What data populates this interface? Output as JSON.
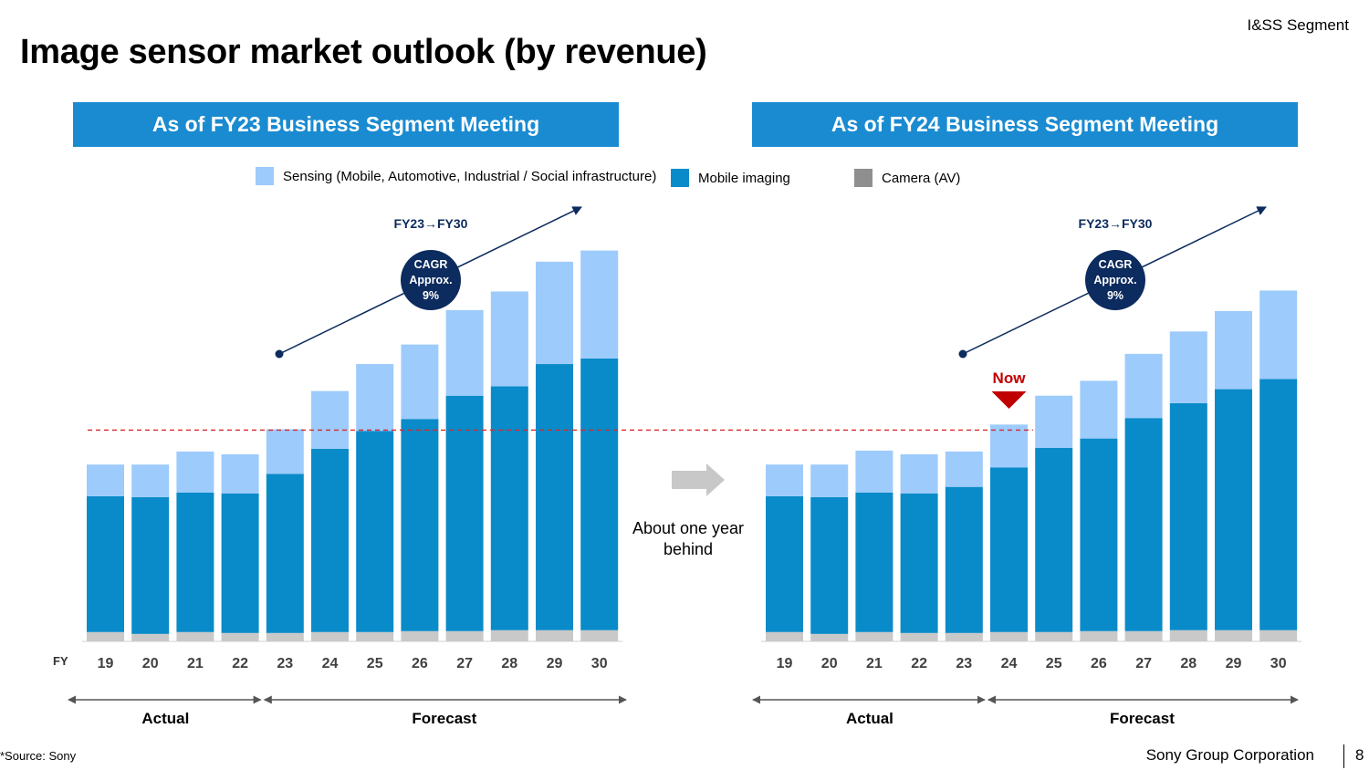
{
  "header": {
    "segment": "I&SS Segment",
    "title": "Image sensor market outlook (by revenue)"
  },
  "legend": {
    "sensing": "Sensing (Mobile, Automotive, Industrial / Social infrastructure)",
    "mobile": "Mobile imaging",
    "camera": "Camera (AV)"
  },
  "colors": {
    "sensing": "#9dcbfb",
    "mobile": "#0a8bc9",
    "camera": "#c9c9c9",
    "header_bg": "#1a8bd1",
    "navy": "#0c2b5e",
    "red": "#c00000"
  },
  "annotations": {
    "between_panels": "About one year behind",
    "now": "Now",
    "fy_axis_label": "FY",
    "actual": "Actual",
    "forecast": "Forecast"
  },
  "footer": {
    "source": "*Source: Sony",
    "company": "Sony Group Corporation",
    "page": "8"
  },
  "chart_data": [
    {
      "type": "bar",
      "stacked": true,
      "title": "As of FY23 Business Segment Meeting",
      "categories": [
        "19",
        "20",
        "21",
        "22",
        "23",
        "24",
        "25",
        "26",
        "27",
        "28",
        "29",
        "30"
      ],
      "series": [
        {
          "name": "Camera (AV)",
          "values": [
            10,
            8,
            10,
            9,
            9,
            10,
            10,
            11,
            11,
            12,
            12,
            12
          ]
        },
        {
          "name": "Mobile imaging",
          "values": [
            146,
            147,
            150,
            150,
            171,
            197,
            216,
            228,
            253,
            262,
            286,
            292
          ]
        },
        {
          "name": "Sensing (Mobile, Automotive, Industrial / Social infrastructure)",
          "values": [
            34,
            35,
            44,
            42,
            48,
            62,
            72,
            80,
            92,
            102,
            110,
            116
          ]
        }
      ],
      "range_labels": {
        "actual": [
          "19",
          "22"
        ],
        "forecast": [
          "23",
          "30"
        ]
      },
      "cagr": {
        "period": "FY23→FY30",
        "line1": "CAGR",
        "line2": "Approx.",
        "line3": "9%"
      },
      "reference_line": 227
    },
    {
      "type": "bar",
      "stacked": true,
      "title": "As of FY24 Business Segment Meeting",
      "categories": [
        "19",
        "20",
        "21",
        "22",
        "23",
        "24",
        "25",
        "26",
        "27",
        "28",
        "29",
        "30"
      ],
      "series": [
        {
          "name": "Camera (AV)",
          "values": [
            10,
            8,
            10,
            9,
            9,
            10,
            10,
            11,
            11,
            12,
            12,
            12
          ]
        },
        {
          "name": "Mobile imaging",
          "values": [
            146,
            147,
            150,
            150,
            157,
            177,
            198,
            207,
            229,
            244,
            259,
            270
          ]
        },
        {
          "name": "Sensing (Mobile, Automotive, Industrial / Social infrastructure)",
          "values": [
            34,
            35,
            45,
            42,
            38,
            46,
            56,
            62,
            69,
            77,
            84,
            95
          ]
        }
      ],
      "range_labels": {
        "actual": [
          "19",
          "23"
        ],
        "forecast": [
          "24",
          "30"
        ]
      },
      "cagr": {
        "period": "FY23→FY30",
        "line1": "CAGR",
        "line2": "Approx.",
        "line3": "9%"
      },
      "now_marker": "24"
    }
  ]
}
